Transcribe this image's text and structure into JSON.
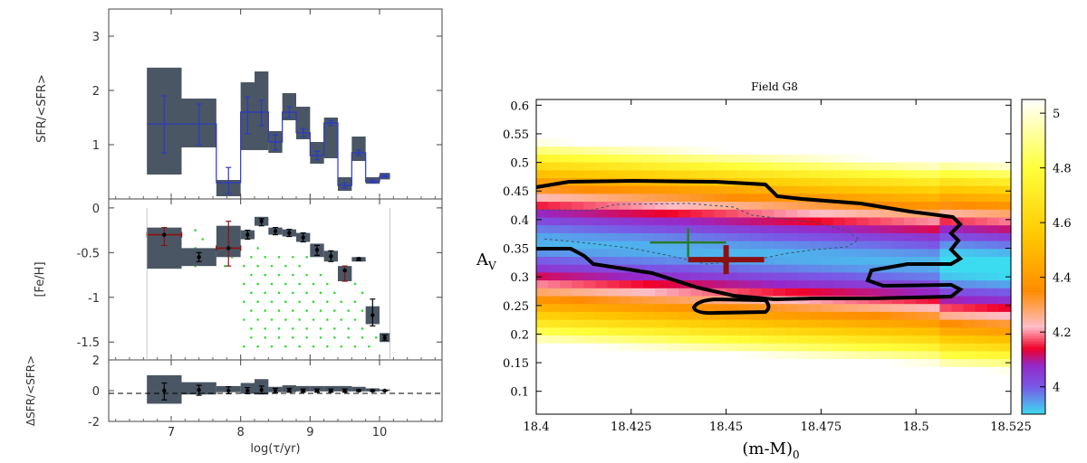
{
  "chart_data": [
    {
      "type": "bar",
      "panel": "sfr",
      "ylabel": "SFR/<SFR>",
      "ylim": [
        0,
        3.5
      ],
      "yticks": [
        "1",
        "2",
        "3"
      ],
      "series": [
        {
          "x0": 6.65,
          "x1": 7.15,
          "lo": 0.45,
          "hi": 2.42,
          "y": 1.38,
          "elo": 0.85,
          "ehi": 1.9
        },
        {
          "x0": 7.15,
          "x1": 7.65,
          "lo": 0.95,
          "hi": 1.85,
          "y": 1.38,
          "elo": 1.0,
          "ehi": 1.75
        },
        {
          "x0": 7.65,
          "x1": 8.0,
          "lo": 0.05,
          "hi": 0.35,
          "y": 0.3,
          "elo": 0.1,
          "ehi": 0.58
        },
        {
          "x0": 8.0,
          "x1": 8.2,
          "lo": 0.9,
          "hi": 2.15,
          "y": 1.6,
          "elo": 1.2,
          "ehi": 1.88
        },
        {
          "x0": 8.2,
          "x1": 8.4,
          "lo": 0.9,
          "hi": 2.35,
          "y": 1.6,
          "elo": 1.35,
          "ehi": 1.82
        },
        {
          "x0": 8.4,
          "x1": 8.6,
          "lo": 0.85,
          "hi": 1.25,
          "y": 1.05,
          "elo": 0.9,
          "ehi": 1.18
        },
        {
          "x0": 8.6,
          "x1": 8.8,
          "lo": 1.45,
          "hi": 1.95,
          "y": 1.6,
          "elo": 1.5,
          "ehi": 1.7
        },
        {
          "x0": 8.8,
          "x1": 9.0,
          "lo": 1.1,
          "hi": 1.7,
          "y": 1.22,
          "elo": 1.15,
          "ehi": 1.3
        },
        {
          "x0": 9.0,
          "x1": 9.2,
          "lo": 0.65,
          "hi": 1.05,
          "y": 0.8,
          "elo": 0.72,
          "ehi": 0.88
        },
        {
          "x0": 9.2,
          "x1": 9.4,
          "lo": 0.75,
          "hi": 1.5,
          "y": 1.4,
          "elo": 1.35,
          "ehi": 1.45
        },
        {
          "x0": 9.4,
          "x1": 9.6,
          "lo": 0.15,
          "hi": 0.4,
          "y": 0.25,
          "elo": 0.2,
          "ehi": 0.3
        },
        {
          "x0": 9.6,
          "x1": 9.8,
          "lo": 0.7,
          "hi": 1.15,
          "y": 0.85,
          "elo": 0.8,
          "ehi": 0.9
        },
        {
          "x0": 9.8,
          "x1": 10.0,
          "lo": 0.28,
          "hi": 0.4,
          "y": 0.32,
          "elo": 0.3,
          "ehi": 0.35
        },
        {
          "x0": 10.0,
          "x1": 10.15,
          "lo": 0.36,
          "hi": 0.48,
          "y": 0.42,
          "elo": 0.4,
          "ehi": 0.45
        }
      ]
    },
    {
      "type": "scatter",
      "panel": "metallicity",
      "ylabel": "[Fe/H]",
      "ylim": [
        -1.7,
        0.1
      ],
      "yticks": [
        "0",
        "-0.5",
        "-1",
        "-1.5"
      ],
      "series": [
        {
          "x0": 6.65,
          "x1": 7.15,
          "lo": -0.68,
          "hi": -0.22,
          "y": -0.3,
          "elo": -0.42,
          "ehi": -0.22,
          "xlo": 6.65,
          "xhi": 7.15,
          "red": true
        },
        {
          "x0": 7.15,
          "x1": 7.65,
          "lo": -0.65,
          "hi": -0.45,
          "y": -0.55,
          "elo": -0.6,
          "ehi": -0.5
        },
        {
          "x0": 7.65,
          "x1": 8.0,
          "lo": -0.55,
          "hi": -0.2,
          "y": -0.45,
          "elo": -0.65,
          "ehi": -0.15,
          "xlo": 7.65,
          "xhi": 8.0,
          "red": true
        },
        {
          "x0": 8.0,
          "x1": 8.2,
          "lo": -0.35,
          "hi": -0.25,
          "y": -0.3,
          "elo": -0.35,
          "ehi": -0.25
        },
        {
          "x0": 8.2,
          "x1": 8.4,
          "lo": -0.2,
          "hi": -0.1,
          "y": -0.15,
          "elo": -0.2,
          "ehi": -0.12
        },
        {
          "x0": 8.4,
          "x1": 8.6,
          "lo": -0.3,
          "hi": -0.22,
          "y": -0.26,
          "elo": -0.3,
          "ehi": -0.22
        },
        {
          "x0": 8.6,
          "x1": 8.8,
          "lo": -0.32,
          "hi": -0.24,
          "y": -0.28,
          "elo": -0.32,
          "ehi": -0.24
        },
        {
          "x0": 8.8,
          "x1": 9.0,
          "lo": -0.38,
          "hi": -0.28,
          "y": -0.33,
          "elo": -0.38,
          "ehi": -0.28
        },
        {
          "x0": 9.0,
          "x1": 9.2,
          "lo": -0.55,
          "hi": -0.4,
          "y": -0.47,
          "elo": -0.53,
          "ehi": -0.42
        },
        {
          "x0": 9.2,
          "x1": 9.4,
          "lo": -0.6,
          "hi": -0.48,
          "y": -0.54,
          "elo": -0.6,
          "ehi": -0.48
        },
        {
          "x0": 9.4,
          "x1": 9.6,
          "lo": -0.82,
          "hi": -0.65,
          "y": -0.7,
          "elo": -0.82,
          "ehi": -0.65,
          "red": true
        },
        {
          "x0": 9.6,
          "x1": 9.8,
          "lo": -0.6,
          "hi": -0.55,
          "y": -0.57,
          "elo": -0.59,
          "ehi": -0.56
        },
        {
          "x0": 9.8,
          "x1": 10.0,
          "lo": -1.3,
          "hi": -1.1,
          "y": -1.2,
          "elo": -1.32,
          "ehi": -1.02
        },
        {
          "x0": 10.0,
          "x1": 10.15,
          "lo": -1.5,
          "hi": -1.4,
          "y": -1.45,
          "elo": -1.48,
          "ehi": -1.42
        }
      ]
    },
    {
      "type": "bar",
      "panel": "residual",
      "ylabel": "ΔSFR/<SFR>",
      "xlabel": "log(τ/yr)",
      "xlim": [
        6.1,
        10.9
      ],
      "ylim": [
        -2,
        2
      ],
      "xticks": [
        "7",
        "8",
        "9",
        "10"
      ],
      "yticks": [
        "2",
        "0",
        "-2"
      ],
      "series": [
        {
          "x0": 6.65,
          "x1": 7.15,
          "lo": -0.85,
          "hi": 1.0,
          "y": 0.0,
          "elo": -0.6,
          "ehi": 0.5
        },
        {
          "x0": 7.15,
          "x1": 7.65,
          "lo": -0.25,
          "hi": 0.55,
          "y": 0.05,
          "elo": -0.3,
          "ehi": 0.35
        },
        {
          "x0": 7.65,
          "x1": 8.0,
          "lo": -0.1,
          "hi": 0.3,
          "y": 0.0,
          "elo": -0.2,
          "ehi": 0.25
        },
        {
          "x0": 8.0,
          "x1": 8.2,
          "lo": -0.2,
          "hi": 0.5,
          "y": 0.0,
          "elo": -0.2,
          "ehi": 0.2
        },
        {
          "x0": 8.2,
          "x1": 8.4,
          "lo": -0.25,
          "hi": 0.75,
          "y": 0.05,
          "elo": -0.2,
          "ehi": 0.3
        },
        {
          "x0": 8.4,
          "x1": 8.6,
          "lo": -0.1,
          "hi": 0.25,
          "y": 0.0,
          "elo": -0.15,
          "ehi": 0.15
        },
        {
          "x0": 8.6,
          "x1": 8.8,
          "lo": -0.1,
          "hi": 0.35,
          "y": 0.05,
          "elo": -0.1,
          "ehi": 0.15
        },
        {
          "x0": 8.8,
          "x1": 9.0,
          "lo": -0.05,
          "hi": 0.3,
          "y": 0.0,
          "elo": -0.1,
          "ehi": 0.1
        },
        {
          "x0": 9.0,
          "x1": 9.2,
          "lo": -0.05,
          "hi": 0.3,
          "y": 0.0,
          "elo": -0.1,
          "ehi": 0.1
        },
        {
          "x0": 9.2,
          "x1": 9.4,
          "lo": -0.05,
          "hi": 0.3,
          "y": 0.0,
          "elo": -0.1,
          "ehi": 0.1
        },
        {
          "x0": 9.4,
          "x1": 9.6,
          "lo": -0.05,
          "hi": 0.3,
          "y": 0.0,
          "elo": -0.1,
          "ehi": 0.1
        },
        {
          "x0": 9.6,
          "x1": 9.8,
          "lo": -0.05,
          "hi": 0.25,
          "y": 0.0,
          "elo": -0.05,
          "ehi": 0.05
        },
        {
          "x0": 9.8,
          "x1": 10.0,
          "lo": -0.05,
          "hi": 0.15,
          "y": 0.0,
          "elo": -0.05,
          "ehi": 0.05
        },
        {
          "x0": 10.0,
          "x1": 10.15,
          "lo": -0.02,
          "hi": 0.08,
          "y": 0.0,
          "elo": -0.02,
          "ehi": 0.02
        }
      ]
    },
    {
      "type": "heatmap",
      "panel": "field",
      "title": "Field G8",
      "xlabel": "(m-M)",
      "xlabel_sub": "0",
      "ylabel": "A",
      "ylabel_sub": "V",
      "xlim": [
        18.4,
        18.525
      ],
      "ylim": [
        0.06,
        0.61
      ],
      "xticks": [
        "18.4",
        "18.425",
        "18.45",
        "18.475",
        "18.5",
        "18.525"
      ],
      "yticks": [
        "0.1",
        "0.15",
        "0.2",
        "0.25",
        "0.3",
        "0.35",
        "0.4",
        "0.45",
        "0.5",
        "0.55",
        "0.6"
      ],
      "colorbar_range": [
        3.9,
        5.05
      ],
      "colorbar_ticks": [
        "4",
        "4.2",
        "4.4",
        "4.6",
        "4.8",
        "5"
      ],
      "best_green": {
        "x": 18.44,
        "y": 0.36
      },
      "best_red": {
        "x": 18.45,
        "y": 0.33
      }
    }
  ],
  "colors": {
    "box": "#4a5663",
    "line": "#2a38c8",
    "green": "#33dd33",
    "red": "#8b1111",
    "contour": "#000000"
  }
}
